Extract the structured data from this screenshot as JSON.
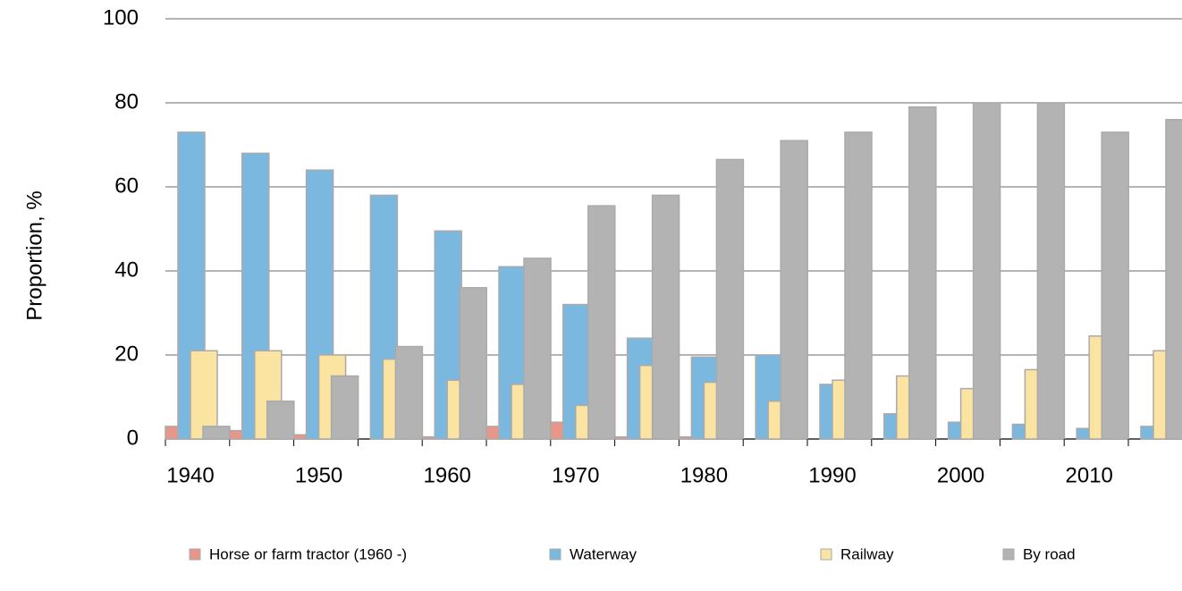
{
  "chart_data": {
    "type": "bar",
    "y_label": "Proportion, %",
    "categories": [
      "1940",
      null,
      "1950",
      null,
      "1960",
      null,
      "1970",
      null,
      "1980",
      null,
      "1990",
      null,
      "2000",
      null,
      "2010",
      null
    ],
    "series": [
      {
        "name": "Horse or farm tractor (1960 -)",
        "color": "#e8958a",
        "values": [
          3,
          2,
          1,
          0,
          0.5,
          3,
          4,
          0.5,
          0.5,
          null,
          null,
          null,
          null,
          null,
          null,
          null
        ]
      },
      {
        "name": "Waterway",
        "color": "#7ab8e0",
        "values": [
          73,
          68,
          64,
          58,
          49.5,
          41,
          32,
          24,
          19.5,
          20,
          13,
          6,
          4,
          3.5,
          2.5,
          3
        ]
      },
      {
        "name": "Railway",
        "color": "#fbe3a2",
        "values": [
          21,
          21,
          20,
          19,
          14,
          13,
          8,
          17.5,
          13.5,
          9,
          14,
          15,
          12,
          16.5,
          24.5,
          21
        ]
      },
      {
        "name": "By road",
        "color": "#b3b3b3",
        "values": [
          3,
          9,
          15,
          22,
          36,
          43,
          55.5,
          58,
          66.5,
          71,
          73,
          79,
          80,
          80,
          73,
          76
        ]
      }
    ],
    "ylim": [
      0,
      100
    ],
    "yticks": [
      0,
      20,
      40,
      60,
      80,
      100
    ],
    "grid": true,
    "legend": "bottom"
  }
}
